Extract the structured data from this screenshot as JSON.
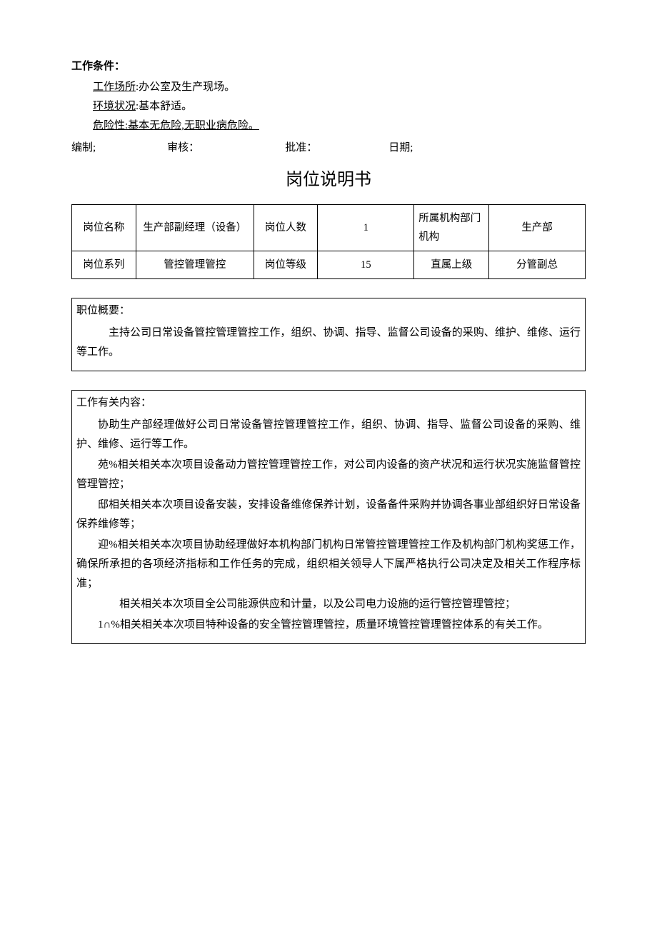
{
  "conditions": {
    "heading": "工作条件：",
    "place_label": "工作场所",
    "place_value": ":办公室及生产现场。",
    "env_label": "环境状况",
    "env_value": ":基本舒适。",
    "risk_label": "危险性",
    "risk_value": ":基本无危险,无职业病危险。"
  },
  "signatures": {
    "compile": "编制;",
    "review": "审核：",
    "approve": "批准：",
    "date": "日期;"
  },
  "doc_title": "岗位说明书",
  "info_table": {
    "row1": {
      "c1": "岗位名称",
      "c2": "生产部副经理（设备）",
      "c3": "岗位人数",
      "c4": "1",
      "c5": "所属机构部门机构",
      "c6": "生产部"
    },
    "row2": {
      "c1": "岗位系列",
      "c2": "管控管理管控",
      "c3": "岗位等级",
      "c4": "15",
      "c5": "直属上级",
      "c6": "分管副总"
    }
  },
  "summary": {
    "heading": "职位概要：",
    "text": "主持公司日常设备管控管理管控工作，组织、协调、指导、监督公司设备的采购、维护、维修、运行等工作。"
  },
  "work_content": {
    "heading": "工作有关内容：",
    "p1": "协助生产部经理做好公司日常设备管控管理管控工作，组织、协调、指导、监督公司设备的采购、维护、维修、运行等工作。",
    "p2": "苑%相关相关本次项目设备动力管控管理管控工作，对公司内设备的资产状况和运行状况实施监督管控管理管控；",
    "p3": "邸相关相关本次项目设备安装，安排设备维修保养计划，设备备件采购并协调各事业部组织好日常设备保养维修等；",
    "p4": "迎%相关相关本次项目协助经理做好本机构部门机构日常管控管理管控工作及机构部门机构奖惩工作，确保所承担的各项经济指标和工作任务的完成，组织相关领导人下属严格执行公司决定及相关工作程序标准；",
    "p5": "相关相关本次项目全公司能源供应和计量，以及公司电力设施的运行管控管理管控；",
    "p6": "1∩%相关相关本次项目特种设备的安全管控管理管控，质量环境管控管理管控体系的有关工作。"
  }
}
